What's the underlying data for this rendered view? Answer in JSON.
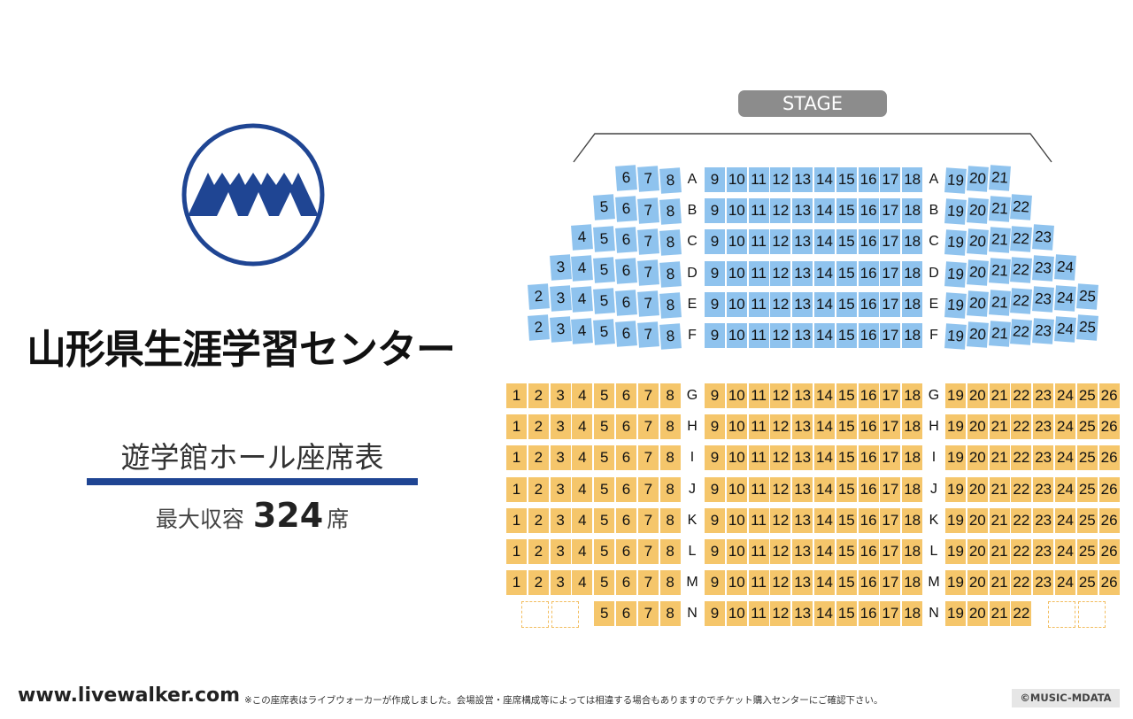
{
  "venue": {
    "name": "山形県生涯学習センター",
    "hall_name": "遊学館ホール座席表",
    "capacity_label": "最大収容",
    "capacity_value": "324",
    "capacity_unit": "席"
  },
  "stage_label": "STAGE",
  "footer": {
    "site": "www.livewalker.com",
    "note": "※この座席表はライブウォーカーが作成しました。会場設営・座席構成等によっては相違する場合もありますのでチケット購入センターにご確認下さい。",
    "credit": "©MUSIC-MDATA"
  },
  "colors": {
    "brand_blue": "#1f4593",
    "front_seat": "#8fc3ee",
    "rear_seat": "#f5c66b",
    "stage": "#8c8c8c"
  },
  "seating": {
    "front_section_color": "front_seat",
    "rear_section_color": "rear_seat",
    "front_rows": [
      {
        "row": "A",
        "left": [
          6,
          7,
          8
        ],
        "center": [
          9,
          18
        ],
        "right": [
          19,
          20,
          21
        ]
      },
      {
        "row": "B",
        "left": [
          5,
          6,
          7,
          8
        ],
        "center": [
          9,
          18
        ],
        "right": [
          19,
          20,
          21,
          22
        ]
      },
      {
        "row": "C",
        "left": [
          4,
          5,
          6,
          7,
          8
        ],
        "center": [
          9,
          18
        ],
        "right": [
          19,
          20,
          21,
          22,
          23
        ]
      },
      {
        "row": "D",
        "left": [
          3,
          4,
          5,
          6,
          7,
          8
        ],
        "center": [
          9,
          18
        ],
        "right": [
          19,
          20,
          21,
          22,
          23,
          24
        ]
      },
      {
        "row": "E",
        "left": [
          2,
          3,
          4,
          5,
          6,
          7,
          8
        ],
        "center": [
          9,
          18
        ],
        "right": [
          19,
          20,
          21,
          22,
          23,
          24,
          25
        ]
      },
      {
        "row": "F",
        "left": [
          2,
          3,
          4,
          5,
          6,
          7,
          8
        ],
        "center": [
          9,
          18
        ],
        "right": [
          19,
          20,
          21,
          22,
          23,
          24,
          25
        ]
      }
    ],
    "rear_rows": [
      {
        "row": "G",
        "left": [
          1,
          8
        ],
        "center": [
          9,
          18
        ],
        "right": [
          19,
          26
        ]
      },
      {
        "row": "H",
        "left": [
          1,
          8
        ],
        "center": [
          9,
          18
        ],
        "right": [
          19,
          26
        ]
      },
      {
        "row": "I",
        "left": [
          1,
          8
        ],
        "center": [
          9,
          18
        ],
        "right": [
          19,
          26
        ]
      },
      {
        "row": "J",
        "left": [
          1,
          8
        ],
        "center": [
          9,
          18
        ],
        "right": [
          19,
          26
        ]
      },
      {
        "row": "K",
        "left": [
          1,
          8
        ],
        "center": [
          9,
          18
        ],
        "right": [
          19,
          26
        ]
      },
      {
        "row": "L",
        "left": [
          1,
          8
        ],
        "center": [
          9,
          18
        ],
        "right": [
          19,
          26
        ]
      },
      {
        "row": "M",
        "left": [
          1,
          8
        ],
        "center": [
          9,
          18
        ],
        "right": [
          19,
          26
        ]
      },
      {
        "row": "N",
        "left": [
          5,
          8
        ],
        "center": [
          9,
          18
        ],
        "right": [
          19,
          22
        ],
        "wheelchair_spaces": 4
      }
    ]
  }
}
